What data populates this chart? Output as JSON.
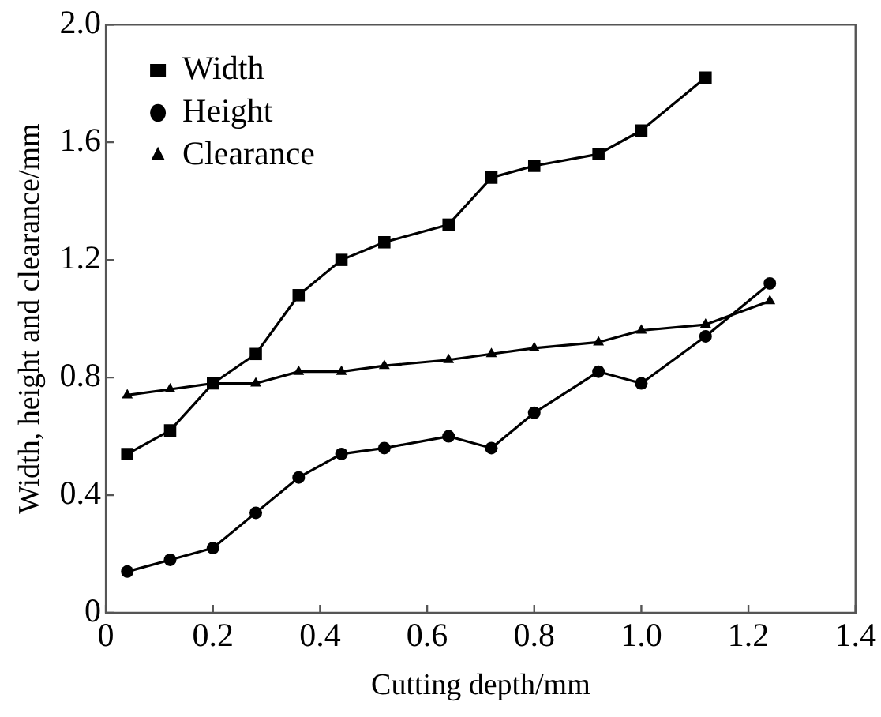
{
  "chart_data": {
    "type": "line",
    "xlabel": "Cutting depth/mm",
    "ylabel": "Width, height and clearance/mm",
    "xlim": [
      0,
      1.4
    ],
    "xticks": [
      0,
      0.2,
      0.4,
      0.6,
      0.8,
      {
        "value": 1.0,
        "label": "1.0"
      },
      1.2,
      1.4
    ],
    "ylim": [
      0,
      2.0
    ],
    "yticks": [
      0,
      0.4,
      0.8,
      1.2,
      1.6,
      {
        "value": 2.0,
        "label": "2.0"
      }
    ],
    "grid": false,
    "legend": "top left",
    "line_style": "solid",
    "x": [
      0.04,
      0.12,
      0.2,
      0.28,
      0.36,
      0.44,
      0.52,
      0.64,
      0.72,
      0.8,
      0.92,
      1.0,
      1.12,
      1.24
    ],
    "series": [
      {
        "name": "Width",
        "color": "#000000",
        "marker": "square",
        "values": [
          0.54,
          0.62,
          0.78,
          0.88,
          1.08,
          1.2,
          1.26,
          1.32,
          1.48,
          1.52,
          1.56,
          1.64,
          1.82,
          null
        ]
      },
      {
        "name": "Height",
        "color": "#000000",
        "marker": "circle",
        "values": [
          0.14,
          0.18,
          0.22,
          0.34,
          0.46,
          0.54,
          0.56,
          0.6,
          0.56,
          0.68,
          0.82,
          0.78,
          0.94,
          1.12
        ]
      },
      {
        "name": "Clearance",
        "color": "#000000",
        "marker": "triangle",
        "values": [
          0.74,
          0.76,
          0.78,
          0.78,
          0.82,
          0.82,
          0.84,
          0.86,
          0.88,
          0.9,
          0.92,
          0.96,
          0.98,
          1.06
        ]
      }
    ]
  }
}
